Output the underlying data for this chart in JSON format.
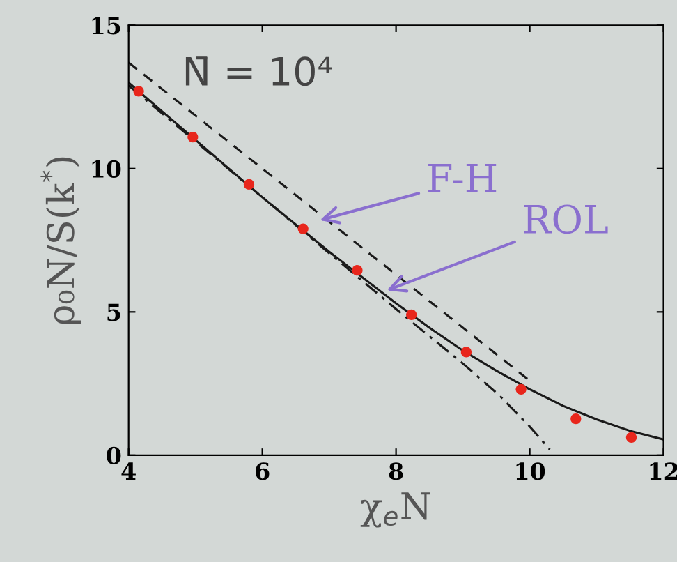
{
  "chart_data": {
    "type": "line",
    "xlabel": "χ$_{e}$N",
    "ylabel": "ρ₀N/S(k$^{*}$)",
    "xlim": [
      4,
      12
    ],
    "ylim": [
      0,
      15
    ],
    "xticks": [
      4,
      6,
      8,
      10,
      12
    ],
    "yticks": [
      0,
      5,
      10,
      15
    ],
    "grid": false,
    "series": [
      {
        "type": "scatter",
        "color": "#e8261c",
        "marker": "circle",
        "x": [
          4.15,
          4.96,
          5.8,
          6.61,
          7.42,
          8.23,
          9.05,
          9.87,
          10.69,
          11.52
        ],
        "values": [
          12.7,
          11.1,
          9.45,
          7.9,
          6.45,
          4.9,
          3.6,
          2.3,
          1.27,
          0.62
        ]
      },
      {
        "type": "line",
        "color": "#1a1a1a",
        "line_style": "solid",
        "x": [
          4,
          4.5,
          5,
          5.5,
          6,
          6.5,
          7,
          7.5,
          8,
          8.5,
          9,
          9.5,
          10,
          10.5,
          11,
          11.5,
          12
        ],
        "values": [
          13.0,
          12.0,
          11.0,
          10.0,
          9.0,
          8.05,
          7.1,
          6.2,
          5.3,
          4.45,
          3.65,
          2.95,
          2.3,
          1.72,
          1.25,
          0.85,
          0.55
        ]
      },
      {
        "type": "line",
        "color": "#1a1a1a",
        "line_style": "dashed",
        "x": [
          4,
          10
        ],
        "values": [
          13.7,
          2.6
        ]
      },
      {
        "type": "line",
        "color": "#1a1a1a",
        "line_style": "dashdot",
        "x": [
          4,
          5,
          6,
          7,
          8,
          9,
          9.54,
          10,
          10.3
        ],
        "values": [
          12.9,
          10.95,
          9.0,
          7.05,
          5.1,
          3.2,
          2.1,
          1.0,
          0.2
        ]
      }
    ],
    "annotations": [
      "N̄ = 10⁴",
      {
        "text": "F-H",
        "x": 6.86,
        "y": 8.2
      },
      {
        "text": "ROL",
        "x": 7.86,
        "y": 5.75
      }
    ]
  }
}
